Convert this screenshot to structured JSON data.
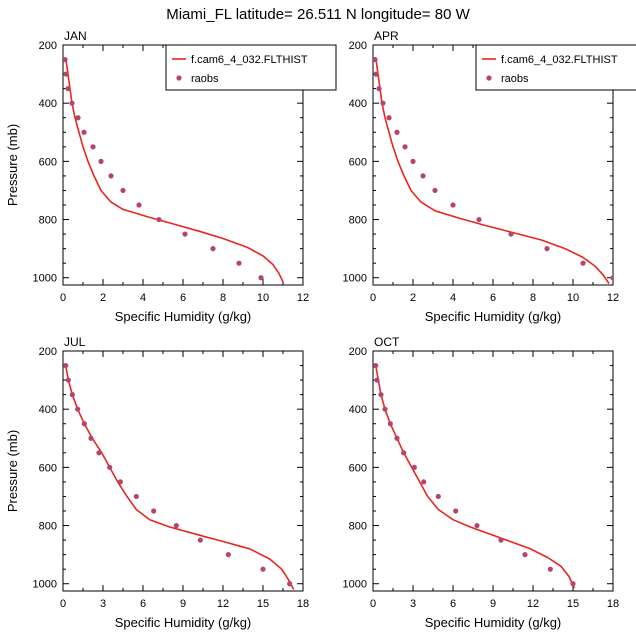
{
  "figure": {
    "title": "Miami_FL  latitude= 26.511 N longitude= 80 W"
  },
  "legend": {
    "model_label": "f.cam6_4_032.FLTHIST",
    "obs_label": "raobs"
  },
  "colors": {
    "model_line": "#e8261c",
    "obs_marker": "#b5446e"
  },
  "chart_data": [
    {
      "type": "line",
      "panel_label": "JAN",
      "xlabel": "Specific Humidity (g/kg)",
      "ylabel": "Pressure (mb)",
      "xlim": [
        0,
        12
      ],
      "ylim": [
        200,
        1025
      ],
      "y_inverted": true,
      "xticks": [
        0,
        2,
        4,
        6,
        8,
        10,
        12
      ],
      "yticks": [
        200,
        400,
        600,
        800,
        1000
      ],
      "legend": true,
      "series": [
        {
          "name": "f.cam6_4_032.FLTHIST",
          "kind": "line",
          "x": [
            0.15,
            0.25,
            0.35,
            0.45,
            0.6,
            0.8,
            1.0,
            1.25,
            1.55,
            1.9,
            2.4,
            3.0,
            4.2,
            5.5,
            6.8,
            8.0,
            9.2,
            10.0,
            10.5,
            10.8,
            11.0
          ],
          "y": [
            250,
            300,
            350,
            400,
            450,
            500,
            550,
            600,
            650,
            700,
            740,
            765,
            790,
            815,
            840,
            865,
            895,
            925,
            955,
            985,
            1015
          ]
        },
        {
          "name": "raobs",
          "kind": "scatter",
          "x": [
            0.1,
            0.15,
            0.25,
            0.45,
            0.75,
            1.05,
            1.5,
            1.9,
            2.4,
            3.0,
            3.8,
            4.8,
            6.1,
            7.5,
            8.8,
            9.9
          ],
          "y": [
            250,
            300,
            350,
            400,
            450,
            500,
            550,
            600,
            650,
            700,
            750,
            800,
            850,
            900,
            950,
            1000
          ]
        }
      ]
    },
    {
      "type": "line",
      "panel_label": "APR",
      "xlabel": "Specific Humidity (g/kg)",
      "ylabel": "",
      "xlim": [
        0,
        12
      ],
      "ylim": [
        200,
        1025
      ],
      "y_inverted": true,
      "xticks": [
        0,
        2,
        4,
        6,
        8,
        10,
        12
      ],
      "yticks": [
        200,
        400,
        600,
        800,
        1000
      ],
      "legend": true,
      "series": [
        {
          "name": "f.cam6_4_032.FLTHIST",
          "kind": "line",
          "x": [
            0.15,
            0.25,
            0.35,
            0.45,
            0.6,
            0.8,
            1.0,
            1.25,
            1.55,
            1.9,
            2.4,
            3.1,
            4.3,
            5.6,
            7.0,
            8.4,
            9.6,
            10.5,
            11.1,
            11.5,
            11.8
          ],
          "y": [
            250,
            300,
            350,
            400,
            450,
            500,
            550,
            600,
            650,
            700,
            740,
            770,
            795,
            820,
            845,
            870,
            900,
            930,
            960,
            990,
            1020
          ]
        },
        {
          "name": "raobs",
          "kind": "scatter",
          "x": [
            0.1,
            0.15,
            0.3,
            0.5,
            0.8,
            1.2,
            1.6,
            2.0,
            2.5,
            3.1,
            4.0,
            5.3,
            6.9,
            8.7,
            10.5,
            12.0
          ],
          "y": [
            250,
            300,
            350,
            400,
            450,
            500,
            550,
            600,
            650,
            700,
            750,
            800,
            850,
            900,
            950,
            1000
          ]
        }
      ]
    },
    {
      "type": "line",
      "panel_label": "JUL",
      "xlabel": "Specific Humidity (g/kg)",
      "ylabel": "Pressure (mb)",
      "xlim": [
        0,
        18
      ],
      "ylim": [
        200,
        1025
      ],
      "y_inverted": true,
      "xticks": [
        0,
        3,
        6,
        9,
        12,
        15,
        18
      ],
      "yticks": [
        200,
        400,
        600,
        800,
        1000
      ],
      "legend": false,
      "series": [
        {
          "name": "f.cam6_4_032.FLTHIST",
          "kind": "line",
          "x": [
            0.2,
            0.4,
            0.7,
            1.1,
            1.6,
            2.2,
            2.9,
            3.5,
            4.1,
            4.8,
            5.5,
            6.5,
            8.0,
            10.0,
            12.0,
            14.0,
            15.5,
            16.4,
            16.9,
            17.3
          ],
          "y": [
            250,
            300,
            350,
            400,
            450,
            500,
            550,
            600,
            650,
            700,
            745,
            780,
            805,
            830,
            855,
            880,
            915,
            950,
            985,
            1020
          ]
        },
        {
          "name": "raobs",
          "kind": "scatter",
          "x": [
            0.2,
            0.4,
            0.7,
            1.1,
            1.6,
            2.1,
            2.7,
            3.5,
            4.3,
            5.5,
            6.8,
            8.5,
            10.3,
            12.4,
            15.0,
            17.0
          ],
          "y": [
            250,
            300,
            350,
            400,
            450,
            500,
            550,
            600,
            650,
            700,
            750,
            800,
            850,
            900,
            950,
            1000
          ]
        }
      ]
    },
    {
      "type": "line",
      "panel_label": "OCT",
      "xlabel": "Specific Humidity (g/kg)",
      "ylabel": "",
      "xlim": [
        0,
        18
      ],
      "ylim": [
        200,
        1025
      ],
      "y_inverted": true,
      "xticks": [
        0,
        3,
        6,
        9,
        12,
        15,
        18
      ],
      "yticks": [
        200,
        400,
        600,
        800,
        1000
      ],
      "legend": false,
      "series": [
        {
          "name": "f.cam6_4_032.FLTHIST",
          "kind": "line",
          "x": [
            0.2,
            0.4,
            0.6,
            0.9,
            1.3,
            1.8,
            2.3,
            2.9,
            3.5,
            4.1,
            4.9,
            6.0,
            7.3,
            8.8,
            10.3,
            11.8,
            13.1,
            14.1,
            14.7,
            15.1
          ],
          "y": [
            250,
            300,
            350,
            400,
            450,
            500,
            550,
            600,
            650,
            700,
            745,
            780,
            805,
            830,
            855,
            880,
            910,
            940,
            975,
            1015
          ]
        },
        {
          "name": "raobs",
          "kind": "scatter",
          "x": [
            0.2,
            0.3,
            0.6,
            0.9,
            1.3,
            1.8,
            2.3,
            3.1,
            3.8,
            4.9,
            6.2,
            7.8,
            9.6,
            11.4,
            13.3,
            15.0
          ],
          "y": [
            250,
            300,
            350,
            400,
            450,
            500,
            550,
            600,
            650,
            700,
            750,
            800,
            850,
            900,
            950,
            1000
          ]
        }
      ]
    }
  ]
}
